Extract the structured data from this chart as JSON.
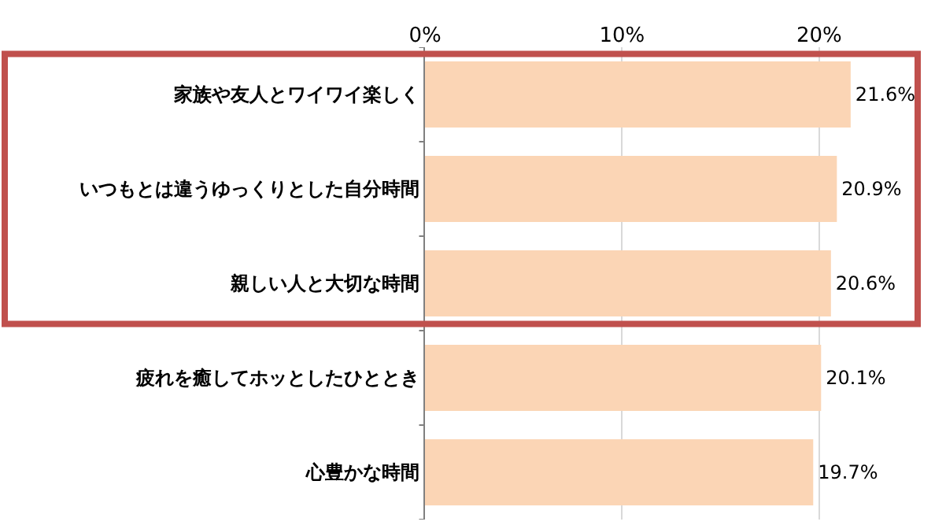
{
  "chart_data": {
    "type": "bar",
    "orientation": "horizontal",
    "categories": [
      "家族や友人とワイワイ楽しく",
      "いつもとは違うゆっくりとした自分時間",
      "親しい人と大切な時間",
      "疲れを癒してホッとしたひととき",
      "心豊かな時間"
    ],
    "values": [
      21.6,
      20.9,
      20.6,
      20.1,
      19.7
    ],
    "value_labels": [
      "21.6%",
      "20.9%",
      "20.6%",
      "20.1%",
      "19.7%"
    ],
    "color": "#fbd5b5",
    "xlim": [
      0,
      25
    ],
    "xticks": [
      {
        "value": 0,
        "label": "0%"
      },
      {
        "value": 10,
        "label": "10%"
      },
      {
        "value": 20,
        "label": "20%"
      }
    ],
    "grid": "x",
    "legend": false
  }
}
